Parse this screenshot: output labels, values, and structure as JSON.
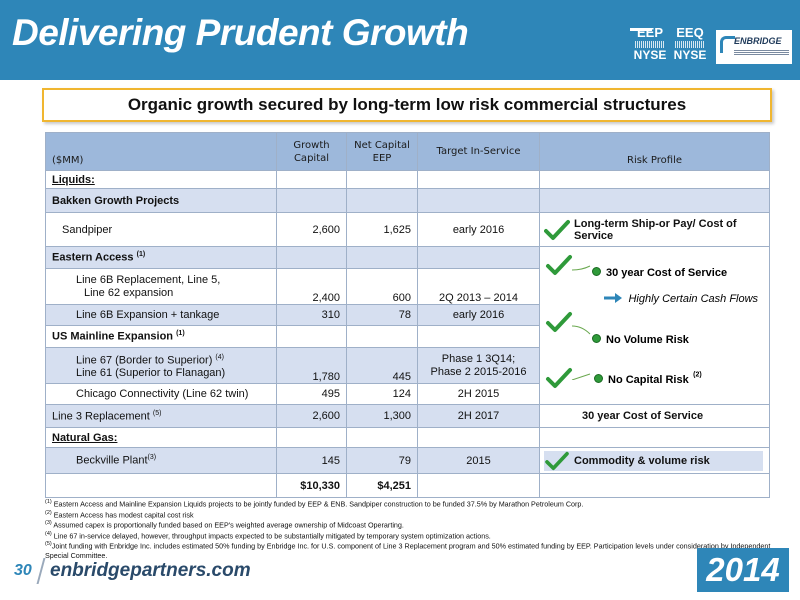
{
  "header": {
    "title": "Delivering Prudent Growth",
    "tickers": [
      {
        "symbol": "EEP",
        "market": "NYSE"
      },
      {
        "symbol": "EEQ",
        "market": "NYSE"
      }
    ],
    "logo_text": "ENBRIDGE",
    "brand_color": "#2e86b8"
  },
  "banner": "Organic growth secured by long-term low risk commercial structures",
  "table": {
    "headers": {
      "units": "($MM)",
      "growth": "Growth Capital",
      "netcap": "Net Capital EEP",
      "target": "Target In-Service",
      "risk": "Risk Profile"
    },
    "liquids": "Liquids:",
    "bakken": "Bakken Growth Projects",
    "sandpiper": {
      "name": "Sandpiper",
      "growth": "2,600",
      "net": "1,625",
      "target": "early 2016"
    },
    "eastern": {
      "name": "Eastern Access",
      "note": "(1)"
    },
    "line6b": {
      "name1": "Line 6B Replacement, Line 5,",
      "name2": "Line 62 expansion",
      "growth": "2,400",
      "net": "600",
      "target": "2Q 2013 – 2014"
    },
    "line6b_exp": {
      "name": "Line 6B Expansion + tankage",
      "growth": "310",
      "net": "78",
      "target": "early 2016"
    },
    "us_mainline": {
      "name": "US Mainline Expansion",
      "note": "(1)"
    },
    "line67": {
      "name1": "Line 67 (Border to Superior)",
      "note1": "(4)",
      "name2": "Line 61 (Superior to Flanagan)",
      "growth": "1,780",
      "net": "445",
      "target1": "Phase 1 3Q14;",
      "target2": "Phase 2 2015-2016"
    },
    "chicago": {
      "name": "Chicago Connectivity (Line 62 twin)",
      "growth": "495",
      "net": "124",
      "target": "2H 2015"
    },
    "line3": {
      "name": "Line 3 Replacement",
      "note": "(5)",
      "growth": "2,600",
      "net": "1,300",
      "target": "2H 2017",
      "risk": "30 year Cost of Service"
    },
    "natural_gas": "Natural Gas:",
    "beckville": {
      "name": "Beckville Plant",
      "note": "(3)",
      "growth": "145",
      "net": "79",
      "target": "2015",
      "risk": "Commodity & volume risk"
    },
    "totals": {
      "growth": "$10,330",
      "net": "$4,251"
    }
  },
  "risk_profile": {
    "sandpiper": "Long-term Ship-or Pay/ Cost of Service",
    "cos": "30 year Cost of Service",
    "cash": "Highly Certain Cash Flows",
    "volume": "No Volume Risk",
    "capital": "No Capital Risk",
    "capital_note": "(2)"
  },
  "footnotes": [
    {
      "mark": "(1)",
      "text": "Eastern Access and Mainline Expansion Liquids projects to be jointly funded by EEP & ENB.   Sandpiper construction to be funded 37.5% by Marathon Petroleum Corp."
    },
    {
      "mark": "(2)",
      "text": "Eastern Access has modest capital cost risk"
    },
    {
      "mark": "(3)",
      "text": "Assumed capex is proportionally funded based on EEP's weighted average ownership of Midcoast Operarting."
    },
    {
      "mark": "(4)",
      "text": "Line 67 in-service delayed, however, throughput impacts expected to be substantially mitigated by temporary system optimization actions."
    },
    {
      "mark": "(5)",
      "text": "Joint funding with Enbridge Inc. includes estimated 50% funding by Enbridge Inc. for U.S. component of Line 3 Replacement program and 50% estimated funding by EEP.  Participation levels under consideration by Independent Special Committee."
    }
  ],
  "footer": {
    "page": "30",
    "url": "enbridgepartners.com",
    "year": "2014"
  }
}
